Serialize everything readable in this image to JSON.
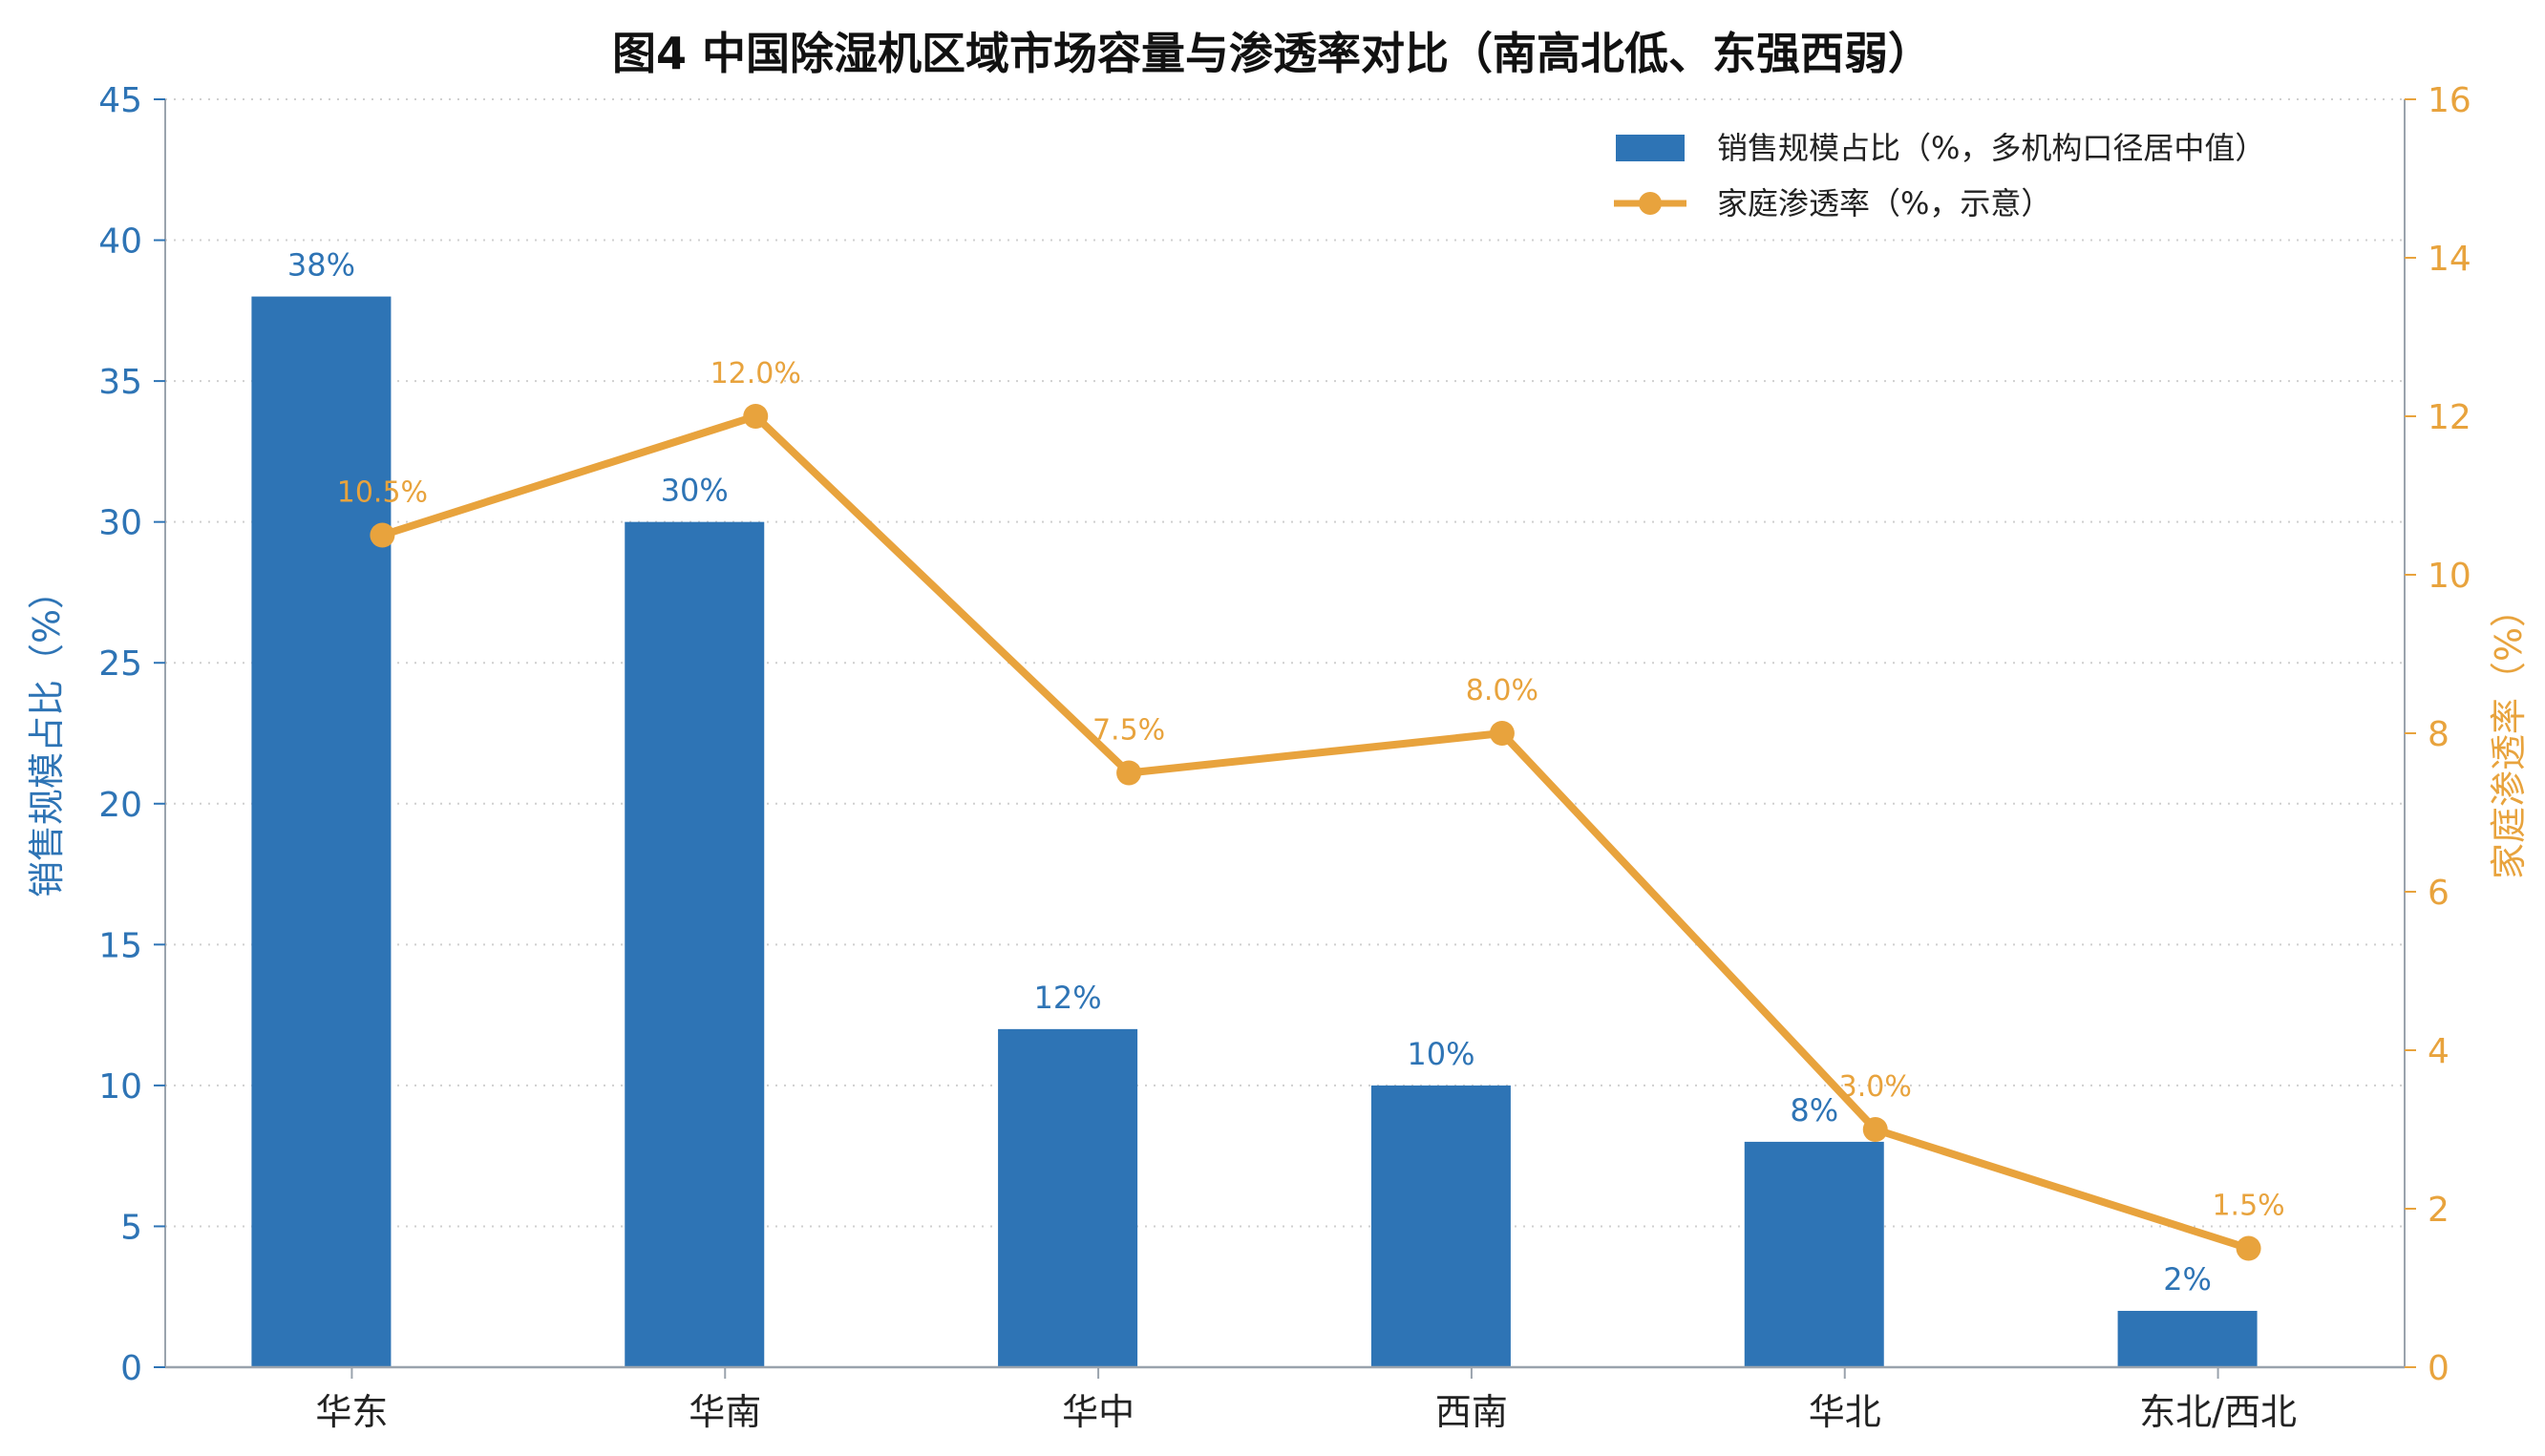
{
  "chart_data": {
    "type": "bar",
    "title": "图4  中国除湿机区域市场容量与渗透率对比（南高北低、东强西弱）",
    "categories": [
      "华东",
      "华南",
      "华中",
      "西南",
      "华北",
      "东北/西北"
    ],
    "series": [
      {
        "name": "销售规模占比（%，多机构口径居中值）",
        "type": "bar",
        "axis": "left",
        "values": [
          38,
          30,
          12,
          10,
          8,
          2
        ],
        "labels": [
          "38%",
          "30%",
          "12%",
          "10%",
          "8%",
          "2%"
        ],
        "color": "#2e74b5"
      },
      {
        "name": "家庭渗透率（%，示意）",
        "type": "line",
        "axis": "right",
        "values": [
          10.5,
          12.0,
          7.5,
          8.0,
          3.0,
          1.5
        ],
        "labels": [
          "10.5%",
          "12.0%",
          "7.5%",
          "8.0%",
          "3.0%",
          "1.5%"
        ],
        "color": "#e8a33d"
      }
    ],
    "ylabel": "销售规模占比（%）",
    "ylabel_right": "家庭渗透率（%）",
    "ylim": [
      0,
      45
    ],
    "ylim_right": [
      0,
      16
    ],
    "yticks": [
      0,
      5,
      10,
      15,
      20,
      25,
      30,
      35,
      40,
      45
    ],
    "yticks_right": [
      0,
      2,
      4,
      6,
      8,
      10,
      12,
      14,
      16
    ],
    "grid": "horizontal dotted",
    "legend_position": "top-right"
  }
}
